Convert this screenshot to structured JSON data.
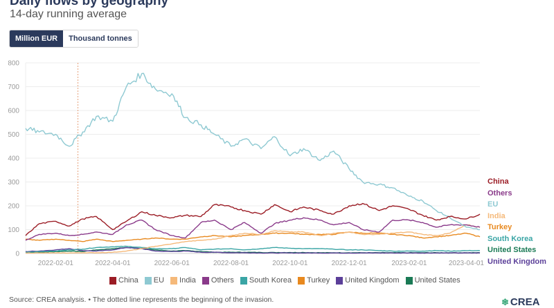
{
  "header": {
    "title": "Daily flows by geography",
    "subtitle": "14-day running average"
  },
  "toggle": {
    "options": [
      "Million EUR",
      "Thousand tonnes"
    ],
    "selected": "Million EUR"
  },
  "chart_data": {
    "type": "line",
    "title": "Daily flows by geography",
    "subtitle": "14-day running average",
    "xlabel": "",
    "ylabel": "Million EUR",
    "ylim": [
      0,
      800
    ],
    "xlim": [
      "2022-01-01",
      "2023-04-15"
    ],
    "yticks": [
      0,
      100,
      200,
      300,
      400,
      500,
      600,
      700,
      800
    ],
    "xticks": [
      "2022-02-01",
      "2022-04-01",
      "2022-06-01",
      "2022-08-01",
      "2022-10-01",
      "2022-12-01",
      "2023-02-01",
      "2023-04-01"
    ],
    "grid": true,
    "legend_position": "bottom",
    "annotation": {
      "type": "vertical-dotted-line",
      "x": "2022-02-24",
      "label": "Beginning of the invasion"
    },
    "x": [
      "2022-01-01",
      "2022-01-15",
      "2022-02-01",
      "2022-02-15",
      "2022-03-01",
      "2022-03-15",
      "2022-04-01",
      "2022-04-15",
      "2022-05-01",
      "2022-05-15",
      "2022-06-01",
      "2022-06-15",
      "2022-07-01",
      "2022-07-15",
      "2022-08-01",
      "2022-08-15",
      "2022-09-01",
      "2022-09-15",
      "2022-10-01",
      "2022-10-15",
      "2022-11-01",
      "2022-11-15",
      "2022-12-01",
      "2022-12-15",
      "2023-01-01",
      "2023-01-15",
      "2023-02-01",
      "2023-02-15",
      "2023-03-01",
      "2023-03-15",
      "2023-04-01",
      "2023-04-15"
    ],
    "series": [
      {
        "name": "China",
        "color": "#9b1c25",
        "values": [
          75,
          125,
          135,
          115,
          145,
          155,
          100,
          135,
          175,
          160,
          150,
          160,
          155,
          205,
          195,
          180,
          165,
          205,
          175,
          195,
          180,
          165,
          200,
          210,
          180,
          200,
          185,
          160,
          140,
          155,
          145,
          165
        ]
      },
      {
        "name": "EU",
        "color": "#8ec9d2",
        "values": [
          525,
          510,
          500,
          450,
          510,
          575,
          555,
          700,
          755,
          690,
          670,
          570,
          540,
          500,
          450,
          480,
          440,
          490,
          410,
          440,
          390,
          430,
          355,
          300,
          290,
          275,
          240,
          220,
          180,
          150,
          110,
          100
        ]
      },
      {
        "name": "India",
        "color": "#f5b97a",
        "values": [
          2,
          2,
          2,
          2,
          3,
          3,
          5,
          10,
          20,
          30,
          40,
          50,
          55,
          60,
          75,
          85,
          80,
          95,
          90,
          90,
          75,
          85,
          90,
          80,
          80,
          85,
          90,
          80,
          75,
          85,
          120,
          110
        ]
      },
      {
        "name": "Others",
        "color": "#8a3a8a",
        "values": [
          55,
          80,
          85,
          75,
          80,
          90,
          80,
          120,
          140,
          100,
          75,
          65,
          130,
          140,
          100,
          130,
          85,
          125,
          140,
          150,
          140,
          120,
          130,
          100,
          90,
          140,
          140,
          130,
          110,
          120,
          120,
          110
        ]
      },
      {
        "name": "South Korea",
        "color": "#3aa5a5",
        "values": [
          5,
          8,
          10,
          15,
          18,
          25,
          28,
          30,
          25,
          20,
          20,
          25,
          15,
          18,
          20,
          15,
          20,
          25,
          22,
          20,
          20,
          18,
          15,
          15,
          12,
          10,
          10,
          10,
          12,
          10,
          12,
          12
        ]
      },
      {
        "name": "Turkey",
        "color": "#e8891f",
        "values": [
          60,
          55,
          60,
          55,
          50,
          60,
          50,
          55,
          60,
          65,
          60,
          60,
          70,
          75,
          70,
          75,
          80,
          85,
          85,
          80,
          80,
          80,
          90,
          85,
          85,
          80,
          75,
          65,
          70,
          75,
          85,
          70
        ]
      },
      {
        "name": "United Kingdom",
        "color": "#5b3f99",
        "values": [
          8,
          10,
          15,
          20,
          12,
          10,
          15,
          25,
          20,
          10,
          8,
          10,
          5,
          5,
          3,
          3,
          2,
          2,
          2,
          2,
          2,
          2,
          2,
          2,
          2,
          2,
          2,
          2,
          2,
          2,
          2,
          2
        ]
      },
      {
        "name": "United States",
        "color": "#1a7a55",
        "values": [
          5,
          5,
          8,
          10,
          8,
          15,
          20,
          25,
          20,
          15,
          10,
          12,
          8,
          5,
          5,
          5,
          4,
          4,
          4,
          4,
          3,
          3,
          3,
          3,
          3,
          3,
          3,
          3,
          3,
          3,
          3,
          3
        ]
      }
    ],
    "end_labels": [
      "China",
      "Others",
      "EU",
      "India",
      "Turkey",
      "South Korea",
      "United States",
      "United Kingdom"
    ]
  },
  "legend": {
    "items": [
      {
        "label": "China",
        "color": "#9b1c25"
      },
      {
        "label": "EU",
        "color": "#8ec9d2"
      },
      {
        "label": "India",
        "color": "#f5b97a"
      },
      {
        "label": "Others",
        "color": "#8a3a8a"
      },
      {
        "label": "South Korea",
        "color": "#3aa5a5"
      },
      {
        "label": "Turkey",
        "color": "#e8891f"
      },
      {
        "label": "United Kingdom",
        "color": "#5b3f99"
      },
      {
        "label": "United States",
        "color": "#1a7a55"
      }
    ]
  },
  "footer": {
    "source": "Source: CREA analysis. • The dotted line represents the beginning of the invasion.",
    "logo": "CREA",
    "logo_icon": "crea-leaf-icon"
  }
}
